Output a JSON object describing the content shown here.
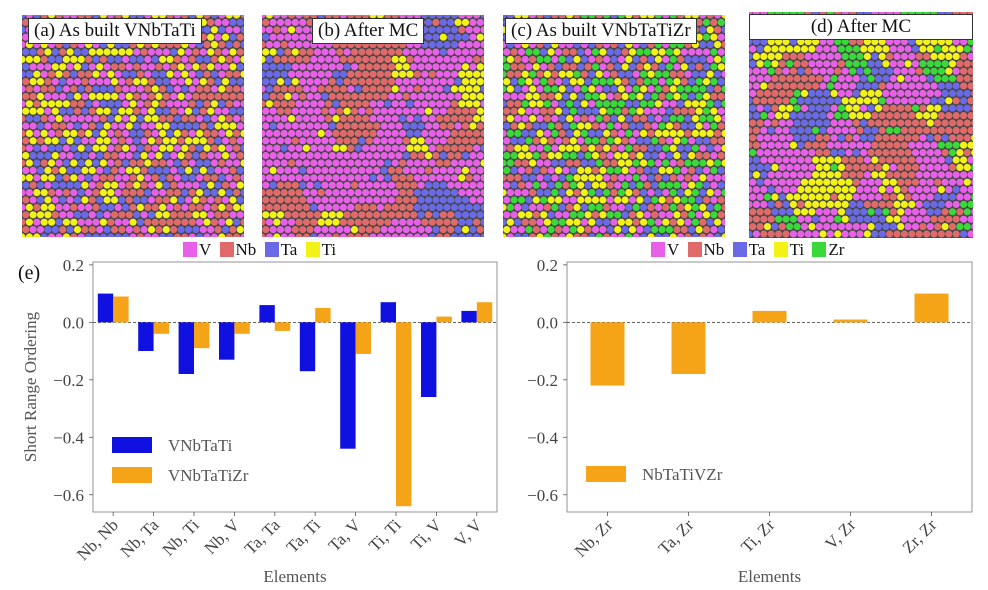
{
  "panels": [
    {
      "title": "(a) As built VNbTaTi",
      "elements": [
        "V",
        "Nb",
        "Ta",
        "Ti"
      ],
      "state": "random"
    },
    {
      "title": "(b) After MC",
      "elements": [
        "V",
        "Nb",
        "Ta",
        "Ti"
      ],
      "state": "ordered"
    },
    {
      "title": "(c) As built VNbTaTiZr",
      "elements": [
        "V",
        "Nb",
        "Ta",
        "Ti",
        "Zr"
      ],
      "state": "random"
    },
    {
      "title": "(d) After MC",
      "elements": [
        "V",
        "Nb",
        "Ta",
        "Ti",
        "Zr"
      ],
      "state": "ordered"
    }
  ],
  "element_legend_1": {
    "items": [
      {
        "label": "V",
        "color": "#e860e8"
      },
      {
        "label": "Nb",
        "color": "#e06a6a"
      },
      {
        "label": "Ta",
        "color": "#6a6ae6"
      },
      {
        "label": "Ti",
        "color": "#f2f218"
      }
    ]
  },
  "element_legend_2": {
    "items": [
      {
        "label": "V",
        "color": "#e860e8"
      },
      {
        "label": "Nb",
        "color": "#e06a6a"
      },
      {
        "label": "Ta",
        "color": "#6a6ae6"
      },
      {
        "label": "Ti",
        "color": "#f2f218"
      },
      {
        "label": "Zr",
        "color": "#3ad83a"
      }
    ]
  },
  "panel_e_label": "(e)",
  "chart_data": [
    {
      "type": "bar",
      "ylabel": "Short Range Ordering",
      "xlabel": "Elements",
      "ylim": [
        -0.66,
        0.21
      ],
      "yticks": [
        0.2,
        0.0,
        -0.2,
        -0.4,
        -0.6
      ],
      "ytick_labels": [
        "0.2",
        "0.0",
        "−0.2",
        "−0.4",
        "−0.6"
      ],
      "categories": [
        "Nb, Nb",
        "Nb, Ta",
        "Nb, Ti",
        "Nb, V",
        "Ta, Ta",
        "Ta, Ti",
        "Ta, V",
        "Ti, Ti",
        "Ti, V",
        "V, V"
      ],
      "series": [
        {
          "name": "VNbTaTi",
          "color": "#1010e0",
          "values": [
            0.1,
            -0.1,
            -0.18,
            -0.13,
            0.06,
            -0.17,
            -0.44,
            0.07,
            -0.26,
            0.04
          ]
        },
        {
          "name": "VNbTaTiZr",
          "color": "#f5a418",
          "values": [
            0.09,
            -0.04,
            -0.09,
            -0.04,
            -0.03,
            0.05,
            -0.11,
            -0.64,
            0.02,
            0.07
          ]
        }
      ],
      "legend": "lower-left"
    },
    {
      "type": "bar",
      "ylabel": "",
      "xlabel": "Elements",
      "ylim": [
        -0.66,
        0.21
      ],
      "yticks": [
        0.2,
        0.0,
        -0.2,
        -0.4,
        -0.6
      ],
      "ytick_labels": [
        "0.2",
        "0.0",
        "−0.2",
        "−0.4",
        "−0.6"
      ],
      "categories": [
        "Nb, Zr",
        "Ta, Zr",
        "Ti, Zr",
        "V, Zr",
        "Zr, Zr"
      ],
      "series": [
        {
          "name": "NbTaTiVZr",
          "color": "#f5a418",
          "values": [
            -0.22,
            -0.18,
            0.04,
            0.01,
            0.1
          ]
        }
      ],
      "legend": "lower-left"
    }
  ]
}
